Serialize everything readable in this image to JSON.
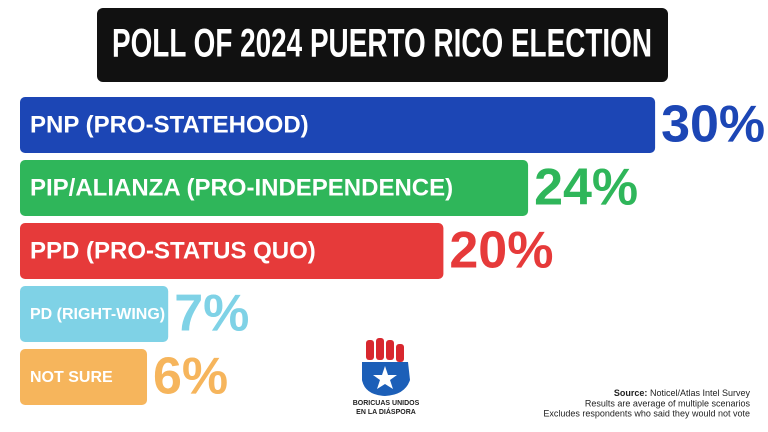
{
  "chart_data": {
    "type": "bar",
    "orientation": "horizontal",
    "title": "POLL OF 2024 PUERTO RICO ELECTION",
    "categories": [
      "PNP (PRO-STATEHOOD)",
      "PIP/ALIANZA (PRO-INDEPENDENCE)",
      "PPD (PRO-STATUS QUO)",
      "PD (RIGHT-WING)",
      "NOT SURE"
    ],
    "values": [
      30,
      24,
      20,
      7,
      6
    ],
    "value_labels": [
      "30%",
      "24%",
      "20%",
      "7%",
      "6%"
    ],
    "colors": [
      "#1c46b5",
      "#2fb65a",
      "#e63a3a",
      "#7fd2e6",
      "#f6b55c"
    ],
    "source_label": "Source:",
    "source": "Noticel/Atlas Intel Survey",
    "notes": [
      "Results are average of multiple scenarios",
      "Excludes respondents who said they would not vote"
    ],
    "logo_text": [
      "BORICUAS UNIDOS",
      "EN LA DIÁSPORA"
    ]
  }
}
